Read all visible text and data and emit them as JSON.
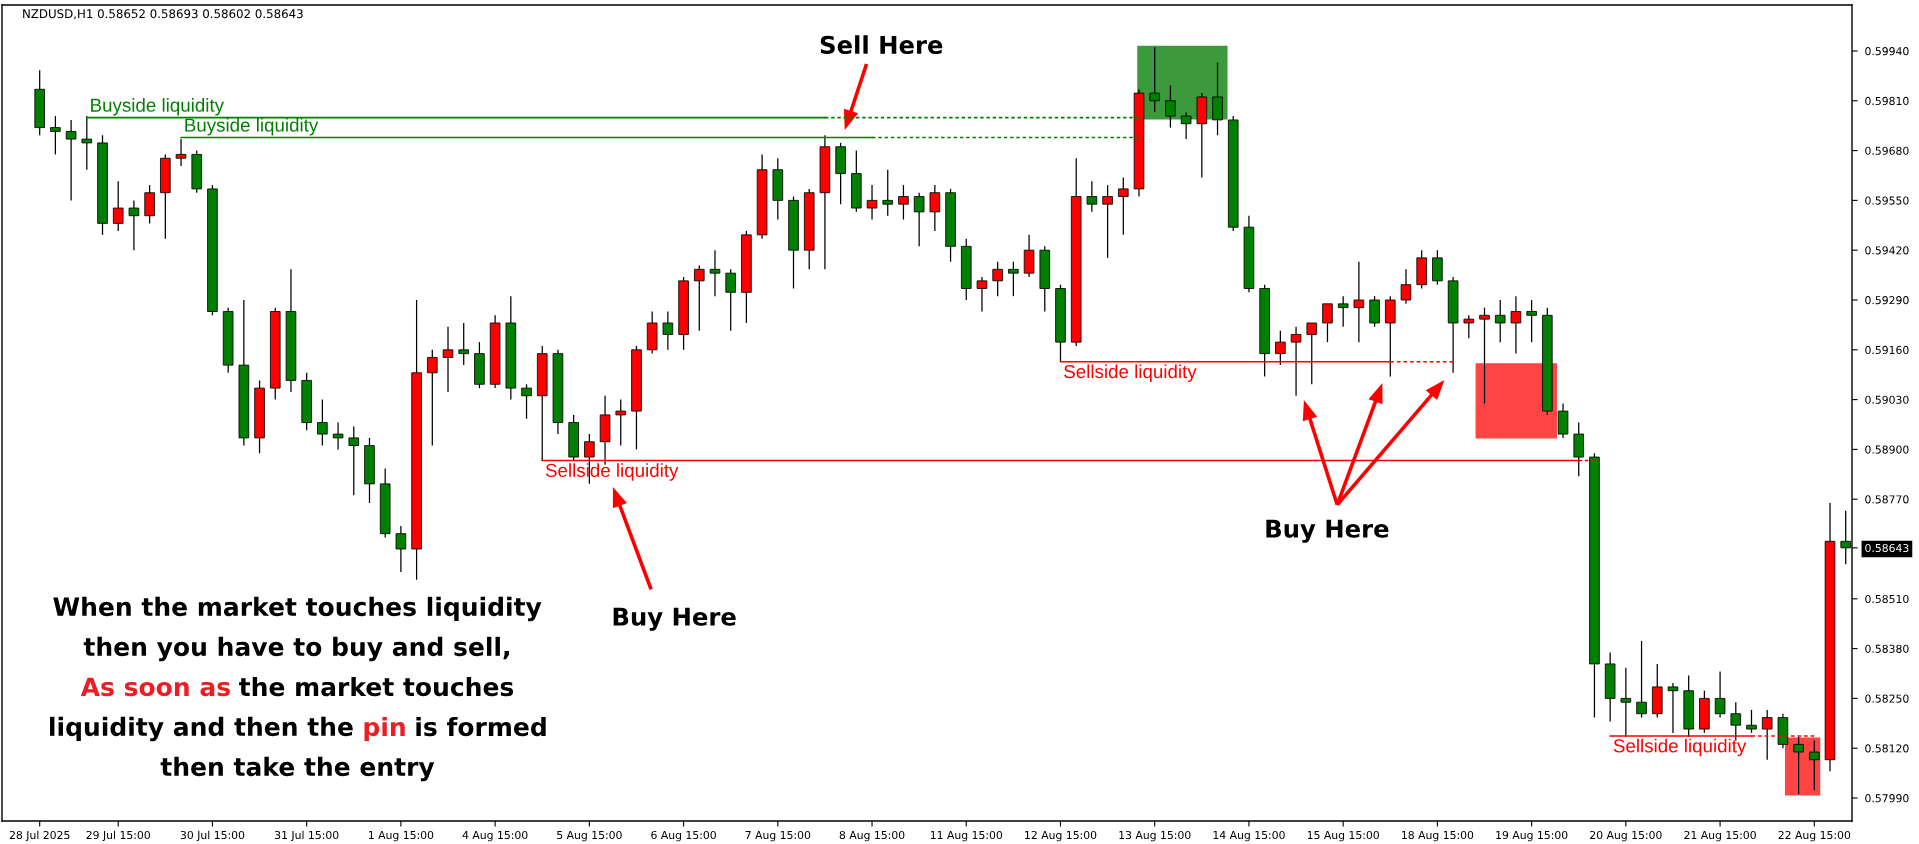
{
  "chart_data": {
    "type": "candlestick",
    "title": "NZDUSD,H1 0.58652 0.58693 0.58602 0.58643",
    "annotations": [
      "When the market touches liquidity",
      "then you have to buy and sell,",
      "As soon as",
      "the market touches",
      "liquidity and then the",
      "pin",
      "is formed",
      "then take the entry",
      "Sell Here",
      "Buy Here",
      "Buy Here"
    ],
    "categories": [
      "28 Jul 2025",
      null,
      null,
      null,
      null,
      "29 Jul 15:00",
      null,
      null,
      null,
      null,
      null,
      "30 Jul 15:00",
      null,
      null,
      null,
      null,
      null,
      "31 Jul 15:00",
      null,
      null,
      null,
      null,
      null,
      "1 Aug 15:00",
      null,
      null,
      null,
      null,
      null,
      "4 Aug 15:00",
      null,
      null,
      null,
      null,
      null,
      "5 Aug 15:00",
      null,
      null,
      null,
      null,
      null,
      "6 Aug 15:00",
      null,
      null,
      null,
      null,
      null,
      "7 Aug 15:00",
      null,
      null,
      null,
      null,
      null,
      "8 Aug 15:00",
      null,
      null,
      null,
      null,
      null,
      "11 Aug 15:00",
      null,
      null,
      null,
      null,
      null,
      "12 Aug 15:00",
      null,
      null,
      null,
      null,
      null,
      "13 Aug 15:00",
      null,
      null,
      null,
      null,
      null,
      "14 Aug 15:00",
      null,
      null,
      null,
      null,
      null,
      "15 Aug 15:00",
      null,
      null,
      null,
      null,
      null,
      "18 Aug 15:00",
      null,
      null,
      null,
      null,
      null,
      "19 Aug 15:00",
      null,
      null,
      null,
      null,
      null,
      "20 Aug 15:00",
      null,
      null,
      null,
      null,
      null,
      "21 Aug 15:00",
      null,
      null,
      null,
      null,
      null,
      "22 Aug 15:00",
      null,
      null
    ],
    "ohlc": [
      [
        0.5984,
        0.5989,
        0.5972,
        0.5974
      ],
      [
        0.5974,
        0.5977,
        0.5967,
        0.5973
      ],
      [
        0.5973,
        0.5976,
        0.5955,
        0.5971
      ],
      [
        0.5971,
        0.5977,
        0.5963,
        0.597
      ],
      [
        0.597,
        0.5972,
        0.5946,
        0.5949
      ],
      [
        0.5949,
        0.596,
        0.5947,
        0.5953
      ],
      [
        0.5953,
        0.5955,
        0.5942,
        0.5951
      ],
      [
        0.5951,
        0.5959,
        0.5949,
        0.5957
      ],
      [
        0.5957,
        0.5967,
        0.5945,
        0.5966
      ],
      [
        0.5966,
        0.5971,
        0.5964,
        0.5967
      ],
      [
        0.5967,
        0.5968,
        0.5957,
        0.5958
      ],
      [
        0.5958,
        0.5959,
        0.5925,
        0.5926
      ],
      [
        0.5926,
        0.5927,
        0.591,
        0.5912
      ],
      [
        0.5912,
        0.5929,
        0.5891,
        0.5893
      ],
      [
        0.5893,
        0.5908,
        0.5889,
        0.5906
      ],
      [
        0.5906,
        0.5927,
        0.5903,
        0.5926
      ],
      [
        0.5926,
        0.5937,
        0.5905,
        0.5908
      ],
      [
        0.5908,
        0.591,
        0.5895,
        0.5897
      ],
      [
        0.5897,
        0.5903,
        0.5891,
        0.5894
      ],
      [
        0.5894,
        0.5897,
        0.589,
        0.5893
      ],
      [
        0.5893,
        0.5896,
        0.5878,
        0.5891
      ],
      [
        0.5891,
        0.5893,
        0.5876,
        0.5881
      ],
      [
        0.5881,
        0.5885,
        0.5867,
        0.5868
      ],
      [
        0.5868,
        0.587,
        0.5858,
        0.5864
      ],
      [
        0.5864,
        0.5929,
        0.5856,
        0.591
      ],
      [
        0.591,
        0.5916,
        0.5891,
        0.5914
      ],
      [
        0.5914,
        0.5922,
        0.5905,
        0.5916
      ],
      [
        0.5916,
        0.5923,
        0.5912,
        0.5915
      ],
      [
        0.5915,
        0.5918,
        0.5906,
        0.5907
      ],
      [
        0.5907,
        0.5925,
        0.5906,
        0.5923
      ],
      [
        0.5923,
        0.593,
        0.5903,
        0.5906
      ],
      [
        0.5906,
        0.5907,
        0.5898,
        0.5904
      ],
      [
        0.5904,
        0.5917,
        0.5887,
        0.5915
      ],
      [
        0.5915,
        0.5916,
        0.5894,
        0.5897
      ],
      [
        0.5897,
        0.5899,
        0.5887,
        0.5888
      ],
      [
        0.5888,
        0.5894,
        0.5881,
        0.5892
      ],
      [
        0.5892,
        0.5904,
        0.5886,
        0.5899
      ],
      [
        0.5899,
        0.5903,
        0.5891,
        0.59
      ],
      [
        0.59,
        0.5917,
        0.589,
        0.5916
      ],
      [
        0.5916,
        0.5926,
        0.5915,
        0.5923
      ],
      [
        0.5923,
        0.5926,
        0.5916,
        0.592
      ],
      [
        0.592,
        0.5935,
        0.5916,
        0.5934
      ],
      [
        0.5934,
        0.5938,
        0.5921,
        0.5937
      ],
      [
        0.5937,
        0.5942,
        0.593,
        0.5936
      ],
      [
        0.5936,
        0.5937,
        0.5921,
        0.5931
      ],
      [
        0.5931,
        0.5947,
        0.5923,
        0.5946
      ],
      [
        0.5946,
        0.5967,
        0.5945,
        0.5963
      ],
      [
        0.5963,
        0.5966,
        0.595,
        0.5955
      ],
      [
        0.5955,
        0.5956,
        0.5932,
        0.5942
      ],
      [
        0.5942,
        0.5958,
        0.5937,
        0.5957
      ],
      [
        0.5957,
        0.5972,
        0.5937,
        0.5969
      ],
      [
        0.5969,
        0.597,
        0.5954,
        0.5962
      ],
      [
        0.5962,
        0.5968,
        0.5952,
        0.5953
      ],
      [
        0.5953,
        0.5959,
        0.595,
        0.5955
      ],
      [
        0.5955,
        0.5963,
        0.5951,
        0.5954
      ],
      [
        0.5954,
        0.5959,
        0.595,
        0.5956
      ],
      [
        0.5956,
        0.5957,
        0.5943,
        0.5952
      ],
      [
        0.5952,
        0.5959,
        0.5947,
        0.5957
      ],
      [
        0.5957,
        0.5958,
        0.5939,
        0.5943
      ],
      [
        0.5943,
        0.5945,
        0.5929,
        0.5932
      ],
      [
        0.5932,
        0.5935,
        0.5926,
        0.5934
      ],
      [
        0.5934,
        0.5939,
        0.593,
        0.5937
      ],
      [
        0.5937,
        0.5939,
        0.593,
        0.5936
      ],
      [
        0.5936,
        0.5946,
        0.5935,
        0.5942
      ],
      [
        0.5942,
        0.5943,
        0.5926,
        0.5932
      ],
      [
        0.5932,
        0.5933,
        0.5913,
        0.5918
      ],
      [
        0.5918,
        0.5966,
        0.5917,
        0.5956
      ],
      [
        0.5956,
        0.596,
        0.5952,
        0.5954
      ],
      [
        0.5954,
        0.5959,
        0.594,
        0.5956
      ],
      [
        0.5956,
        0.5961,
        0.5946,
        0.5958
      ],
      [
        0.5958,
        0.5984,
        0.5956,
        0.5983
      ],
      [
        0.5983,
        0.5995,
        0.5978,
        0.5981
      ],
      [
        0.5981,
        0.5985,
        0.5974,
        0.5977
      ],
      [
        0.5977,
        0.5978,
        0.5971,
        0.5975
      ],
      [
        0.5975,
        0.5983,
        0.5961,
        0.5982
      ],
      [
        0.5982,
        0.5991,
        0.5972,
        0.5976
      ],
      [
        0.5976,
        0.5977,
        0.5947,
        0.5948
      ],
      [
        0.5948,
        0.5951,
        0.5931,
        0.5932
      ],
      [
        0.5932,
        0.5933,
        0.5909,
        0.5915
      ],
      [
        0.5915,
        0.5921,
        0.5912,
        0.5918
      ],
      [
        0.5918,
        0.5922,
        0.5904,
        0.592
      ],
      [
        0.592,
        0.5923,
        0.5907,
        0.5923
      ],
      [
        0.5923,
        0.5928,
        0.5918,
        0.5928
      ],
      [
        0.5928,
        0.593,
        0.5922,
        0.5927
      ],
      [
        0.5927,
        0.5939,
        0.5918,
        0.5929
      ],
      [
        0.5929,
        0.593,
        0.5922,
        0.5923
      ],
      [
        0.5923,
        0.593,
        0.5909,
        0.5929
      ],
      [
        0.5929,
        0.5937,
        0.5928,
        0.5933
      ],
      [
        0.5933,
        0.5942,
        0.5932,
        0.594
      ],
      [
        0.594,
        0.5942,
        0.5933,
        0.5934
      ],
      [
        0.5934,
        0.5935,
        0.591,
        0.5923
      ],
      [
        0.5923,
        0.5925,
        0.5919,
        0.5924
      ],
      [
        0.5924,
        0.5927,
        0.5902,
        0.5925
      ],
      [
        0.5925,
        0.5929,
        0.5918,
        0.5923
      ],
      [
        0.5923,
        0.593,
        0.5915,
        0.5926
      ],
      [
        0.5926,
        0.5929,
        0.5918,
        0.5925
      ],
      [
        0.5925,
        0.5927,
        0.5899,
        0.59
      ],
      [
        0.59,
        0.5902,
        0.5893,
        0.5894
      ],
      [
        0.5894,
        0.5897,
        0.5883,
        0.5888
      ],
      [
        0.5888,
        0.5889,
        0.582,
        0.5834
      ],
      [
        0.5834,
        0.5837,
        0.5819,
        0.5825
      ],
      [
        0.5825,
        0.5833,
        0.5815,
        0.5824
      ],
      [
        0.5824,
        0.584,
        0.582,
        0.5821
      ],
      [
        0.5821,
        0.5834,
        0.582,
        0.5828
      ],
      [
        0.5828,
        0.5829,
        0.5816,
        0.5827
      ],
      [
        0.5827,
        0.5831,
        0.5815,
        0.5817
      ],
      [
        0.5817,
        0.5827,
        0.5816,
        0.5825
      ],
      [
        0.5825,
        0.5832,
        0.582,
        0.5821
      ],
      [
        0.5821,
        0.5824,
        0.5814,
        0.5818
      ],
      [
        0.5818,
        0.5822,
        0.5816,
        0.5817
      ],
      [
        0.5817,
        0.5822,
        0.5809,
        0.582
      ],
      [
        0.582,
        0.5821,
        0.5812,
        0.5813
      ],
      [
        0.5813,
        0.5815,
        0.58,
        0.5811
      ],
      [
        0.5811,
        0.5814,
        0.5801,
        0.5809
      ],
      [
        0.5809,
        0.5876,
        0.5806,
        0.5866
      ],
      [
        0.5866,
        0.5874,
        0.586,
        0.58643
      ]
    ],
    "colors": [
      "#008000",
      "#008000",
      "#008000",
      "#008000",
      "#008000",
      "#ff0000",
      "#008000",
      "#ff0000",
      "#ff0000",
      "#ff0000",
      "#008000",
      "#008000",
      "#008000",
      "#008000",
      "#ff0000",
      "#ff0000",
      "#008000",
      "#008000",
      "#008000",
      "#008000",
      "#008000",
      "#008000",
      "#008000",
      "#008000",
      "#ff0000",
      "#ff0000",
      "#ff0000",
      "#008000",
      "#008000",
      "#ff0000",
      "#008000",
      "#008000",
      "#ff0000",
      "#008000",
      "#008000",
      "#ff0000",
      "#ff0000",
      "#ff0000",
      "#ff0000",
      "#ff0000",
      "#008000",
      "#ff0000",
      "#ff0000",
      "#008000",
      "#008000",
      "#ff0000",
      "#ff0000",
      "#008000",
      "#008000",
      "#ff0000",
      "#ff0000",
      "#008000",
      "#008000",
      "#ff0000",
      "#008000",
      "#ff0000",
      "#008000",
      "#ff0000",
      "#008000",
      "#008000",
      "#ff0000",
      "#ff0000",
      "#008000",
      "#ff0000",
      "#008000",
      "#008000",
      "#ff0000",
      "#008000",
      "#ff0000",
      "#ff0000",
      "#ff0000",
      "#008000",
      "#008000",
      "#008000",
      "#ff0000",
      "#008000",
      "#008000",
      "#008000",
      "#008000",
      "#ff0000",
      "#ff0000",
      "#ff0000",
      "#ff0000",
      "#008000",
      "#ff0000",
      "#008000",
      "#ff0000",
      "#ff0000",
      "#ff0000",
      "#008000",
      "#008000",
      "#ff0000",
      "#ff0000",
      "#008000",
      "#ff0000",
      "#008000",
      "#008000",
      "#008000",
      "#008000",
      "#008000",
      "#008000",
      "#008000",
      "#008000",
      "#ff0000",
      "#008000",
      "#008000",
      "#ff0000",
      "#008000",
      "#008000",
      "#008000",
      "#ff0000",
      "#008000",
      "#008000",
      "#008000",
      "#ff0000",
      "#008000"
    ],
    "series": [
      {
        "type": "line",
        "name": "Buyside liquidity",
        "color": "#008000",
        "line_style": "solid",
        "values": [
          null,
          null,
          null,
          0.59766,
          0.59766,
          0.59766,
          0.59766,
          0.59766,
          0.59766,
          0.59766,
          0.59766,
          0.59766,
          0.59766,
          0.59766,
          0.59766,
          0.59766,
          0.59766,
          0.59766,
          0.59766,
          0.59766,
          0.59766,
          0.59766,
          0.59766,
          0.59766,
          0.59766,
          0.59766,
          0.59766,
          0.59766,
          0.59766,
          0.59766,
          0.59766,
          0.59766,
          0.59766,
          0.59766,
          0.59766,
          0.59766,
          0.59766,
          0.59766,
          0.59766,
          0.59766,
          0.59766,
          0.59766,
          0.59766,
          0.59766,
          0.59766,
          0.59766,
          0.59766,
          0.59766,
          0.59766,
          0.59766,
          0.59766,
          null,
          null,
          null,
          null,
          null,
          null,
          null,
          null,
          null,
          null,
          null,
          null,
          null,
          null,
          null,
          null,
          null,
          null,
          null,
          null,
          null,
          null,
          null,
          null,
          null,
          null,
          null,
          null,
          null,
          null,
          null,
          null,
          null,
          null,
          null,
          null,
          null,
          null,
          null,
          null,
          null,
          null,
          null,
          null,
          null,
          null,
          null,
          null,
          null,
          null,
          null,
          null,
          null,
          null,
          null,
          null,
          null,
          null,
          null,
          null,
          null,
          null,
          null,
          null,
          null
        ]
      },
      {
        "type": "line",
        "color": "#008000",
        "line_style": "dotted",
        "values": [
          null,
          null,
          null,
          null,
          null,
          null,
          null,
          null,
          null,
          null,
          null,
          null,
          null,
          null,
          null,
          null,
          null,
          null,
          null,
          null,
          null,
          null,
          null,
          null,
          null,
          null,
          null,
          null,
          null,
          null,
          null,
          null,
          null,
          null,
          null,
          null,
          null,
          null,
          null,
          null,
          null,
          null,
          null,
          null,
          null,
          null,
          null,
          null,
          null,
          null,
          0.59766,
          0.59766,
          0.59766,
          0.59766,
          0.59766,
          0.59766,
          0.59766,
          0.59766,
          0.59766,
          0.59766,
          0.59766,
          0.59766,
          0.59766,
          0.59766,
          0.59766,
          0.59766,
          0.59766,
          0.59766,
          0.59766,
          0.59766,
          0.59766,
          null,
          null,
          null,
          null,
          null,
          null,
          null,
          null,
          null,
          null,
          null,
          null,
          null,
          null,
          null,
          null,
          null,
          null,
          null,
          null,
          null,
          null,
          null,
          null,
          null,
          null,
          null,
          null,
          null,
          null,
          null,
          null,
          null,
          null,
          null,
          null,
          null,
          null,
          null,
          null,
          null,
          null,
          null,
          null,
          null
        ]
      },
      {
        "type": "line",
        "name": "Buyside liquidity",
        "color": "#008000",
        "line_style": "solid",
        "values": [
          null,
          null,
          null,
          null,
          null,
          null,
          null,
          null,
          null,
          0.59714,
          0.59714,
          0.59714,
          0.59714,
          0.59714,
          0.59714,
          0.59714,
          0.59714,
          0.59714,
          0.59714,
          0.59714,
          0.59714,
          0.59714,
          0.59714,
          0.59714,
          0.59714,
          0.59714,
          0.59714,
          0.59714,
          0.59714,
          0.59714,
          0.59714,
          0.59714,
          0.59714,
          0.59714,
          0.59714,
          0.59714,
          0.59714,
          0.59714,
          0.59714,
          0.59714,
          0.59714,
          0.59714,
          0.59714,
          0.59714,
          0.59714,
          0.59714,
          0.59714,
          0.59714,
          0.59714,
          0.59714,
          0.59714,
          0.59714,
          0.59714,
          0.59714,
          null,
          null,
          null,
          null,
          null,
          null,
          null,
          null,
          null,
          null,
          null,
          null,
          null,
          null,
          null,
          null,
          null,
          null,
          null,
          null,
          null,
          null,
          null,
          null,
          null,
          null,
          null,
          null,
          null,
          null,
          null,
          null,
          null,
          null,
          null,
          null,
          null,
          null,
          null,
          null,
          null,
          null,
          null,
          null,
          null,
          null,
          null,
          null,
          null,
          null,
          null,
          null,
          null,
          null,
          null,
          null,
          null,
          null,
          null,
          null,
          null,
          null
        ]
      },
      {
        "type": "line",
        "color": "#008000",
        "line_style": "dotted",
        "values": [
          null,
          null,
          null,
          null,
          null,
          null,
          null,
          null,
          null,
          null,
          null,
          null,
          null,
          null,
          null,
          null,
          null,
          null,
          null,
          null,
          null,
          null,
          null,
          null,
          null,
          null,
          null,
          null,
          null,
          null,
          null,
          null,
          null,
          null,
          null,
          null,
          null,
          null,
          null,
          null,
          null,
          null,
          null,
          null,
          null,
          null,
          null,
          null,
          null,
          null,
          null,
          null,
          null,
          0.59714,
          0.59714,
          0.59714,
          0.59714,
          0.59714,
          0.59714,
          0.59714,
          0.59714,
          0.59714,
          0.59714,
          0.59714,
          0.59714,
          0.59714,
          0.59714,
          0.59714,
          0.59714,
          0.59714,
          0.59714,
          null,
          null,
          null,
          null,
          null,
          null,
          null,
          null,
          null,
          null,
          null,
          null,
          null,
          null,
          null,
          null,
          null,
          null,
          null,
          null,
          null,
          null,
          null,
          null,
          null,
          null,
          null,
          null,
          null,
          null,
          null,
          null,
          null,
          null,
          null,
          null,
          null,
          null,
          null,
          null,
          null,
          null,
          null,
          null,
          null
        ]
      },
      {
        "type": "line",
        "name": "Sellside liquidity",
        "color": "#ff0000",
        "line_style": "solid",
        "values": [
          null,
          null,
          null,
          null,
          null,
          null,
          null,
          null,
          null,
          null,
          null,
          null,
          null,
          null,
          null,
          null,
          null,
          null,
          null,
          null,
          null,
          null,
          null,
          null,
          null,
          null,
          null,
          null,
          null,
          null,
          null,
          null,
          null,
          null,
          null,
          null,
          null,
          null,
          null,
          null,
          null,
          null,
          null,
          null,
          null,
          null,
          null,
          null,
          null,
          null,
          null,
          null,
          null,
          null,
          null,
          null,
          null,
          null,
          null,
          null,
          null,
          null,
          null,
          null,
          null,
          0.59129,
          0.59129,
          0.59129,
          0.59129,
          0.59129,
          0.59129,
          0.59129,
          0.59129,
          0.59129,
          0.59129,
          0.59129,
          0.59129,
          0.59129,
          0.59129,
          0.59129,
          0.59129,
          0.59129,
          0.59129,
          0.59129,
          0.59129,
          0.59129,
          0.59129,
          null,
          null,
          null,
          null,
          null,
          null,
          null,
          null,
          null,
          null,
          null,
          null,
          null,
          null,
          null,
          null,
          null,
          null,
          null,
          null,
          null,
          null,
          null,
          null,
          null,
          null,
          null,
          null,
          null
        ]
      },
      {
        "type": "line",
        "color": "#ff0000",
        "line_style": "dotted",
        "values": [
          null,
          null,
          null,
          null,
          null,
          null,
          null,
          null,
          null,
          null,
          null,
          null,
          null,
          null,
          null,
          null,
          null,
          null,
          null,
          null,
          null,
          null,
          null,
          null,
          null,
          null,
          null,
          null,
          null,
          null,
          null,
          null,
          null,
          null,
          null,
          null,
          null,
          null,
          null,
          null,
          null,
          null,
          null,
          null,
          null,
          null,
          null,
          null,
          null,
          null,
          null,
          null,
          null,
          null,
          null,
          null,
          null,
          null,
          null,
          null,
          null,
          null,
          null,
          null,
          null,
          null,
          null,
          null,
          null,
          null,
          null,
          null,
          null,
          null,
          null,
          null,
          null,
          null,
          null,
          null,
          null,
          null,
          null,
          null,
          null,
          null,
          0.59129,
          0.59129,
          0.59129,
          0.59129,
          0.59129,
          null,
          null,
          null,
          null,
          null,
          null,
          null,
          null,
          null,
          null,
          null,
          null,
          null,
          null,
          null,
          null,
          null,
          null,
          null,
          null,
          null,
          null,
          null,
          null,
          null
        ]
      },
      {
        "type": "line",
        "name": "Sellside liquidity",
        "color": "#ff0000",
        "line_style": "solid",
        "values": [
          null,
          null,
          null,
          null,
          null,
          null,
          null,
          null,
          null,
          null,
          null,
          null,
          null,
          null,
          null,
          null,
          null,
          null,
          null,
          null,
          null,
          null,
          null,
          null,
          null,
          null,
          null,
          null,
          null,
          null,
          null,
          null,
          0.58871,
          0.58871,
          0.58871,
          0.58871,
          0.58871,
          0.58871,
          0.58871,
          0.58871,
          0.58871,
          0.58871,
          0.58871,
          0.58871,
          0.58871,
          0.58871,
          0.58871,
          0.58871,
          0.58871,
          0.58871,
          0.58871,
          0.58871,
          0.58871,
          0.58871,
          0.58871,
          0.58871,
          0.58871,
          0.58871,
          0.58871,
          0.58871,
          0.58871,
          0.58871,
          0.58871,
          0.58871,
          0.58871,
          0.58871,
          0.58871,
          0.58871,
          0.58871,
          0.58871,
          0.58871,
          0.58871,
          0.58871,
          0.58871,
          0.58871,
          0.58871,
          0.58871,
          0.58871,
          0.58871,
          0.58871,
          0.58871,
          0.58871,
          0.58871,
          0.58871,
          0.58871,
          0.58871,
          0.58871,
          0.58871,
          0.58871,
          0.58871,
          0.58871,
          0.58871,
          0.58871,
          0.58871,
          0.58871,
          0.58871,
          0.58871,
          0.58871,
          0.58871,
          null,
          null,
          null,
          null,
          null,
          null,
          null,
          null,
          null,
          null,
          null,
          null,
          null,
          null,
          null,
          null,
          null
        ]
      },
      {
        "type": "line",
        "color": "#ff0000",
        "line_style": "dotted",
        "values": [
          null,
          null,
          null,
          null,
          null,
          null,
          null,
          null,
          null,
          null,
          null,
          null,
          null,
          null,
          null,
          null,
          null,
          null,
          null,
          null,
          null,
          null,
          null,
          null,
          null,
          null,
          null,
          null,
          null,
          null,
          null,
          null,
          null,
          null,
          null,
          null,
          null,
          null,
          null,
          null,
          null,
          null,
          null,
          null,
          null,
          null,
          null,
          null,
          null,
          null,
          null,
          null,
          null,
          null,
          null,
          null,
          null,
          null,
          null,
          null,
          null,
          null,
          null,
          null,
          null,
          null,
          null,
          null,
          null,
          null,
          null,
          null,
          null,
          null,
          null,
          null,
          null,
          null,
          null,
          null,
          null,
          null,
          null,
          null,
          null,
          null,
          null,
          null,
          null,
          null,
          null,
          null,
          null,
          null,
          null,
          null,
          null,
          null,
          0.58871,
          0.58871,
          null,
          null,
          null,
          null,
          null,
          null,
          null,
          null,
          null,
          null,
          null,
          null,
          null,
          null,
          null,
          null
        ]
      },
      {
        "type": "line",
        "name": "Sellside liquidity",
        "color": "#ff0000",
        "line_style": "solid",
        "values": [
          null,
          null,
          null,
          null,
          null,
          null,
          null,
          null,
          null,
          null,
          null,
          null,
          null,
          null,
          null,
          null,
          null,
          null,
          null,
          null,
          null,
          null,
          null,
          null,
          null,
          null,
          null,
          null,
          null,
          null,
          null,
          null,
          null,
          null,
          null,
          null,
          null,
          null,
          null,
          null,
          null,
          null,
          null,
          null,
          null,
          null,
          null,
          null,
          null,
          null,
          null,
          null,
          null,
          null,
          null,
          null,
          null,
          null,
          null,
          null,
          null,
          null,
          null,
          null,
          null,
          null,
          null,
          null,
          null,
          null,
          null,
          null,
          null,
          null,
          null,
          null,
          null,
          null,
          null,
          null,
          null,
          null,
          null,
          null,
          null,
          null,
          null,
          null,
          null,
          null,
          null,
          null,
          null,
          null,
          null,
          null,
          null,
          null,
          null,
          null,
          0.58152,
          0.58152,
          0.58152,
          0.58152,
          0.58152,
          0.58152,
          0.58152,
          0.58152,
          0.58152,
          0.58152,
          null,
          null,
          null,
          null,
          null,
          null
        ]
      },
      {
        "type": "line",
        "color": "#ff0000",
        "line_style": "dotted",
        "values": [
          null,
          null,
          null,
          null,
          null,
          null,
          null,
          null,
          null,
          null,
          null,
          null,
          null,
          null,
          null,
          null,
          null,
          null,
          null,
          null,
          null,
          null,
          null,
          null,
          null,
          null,
          null,
          null,
          null,
          null,
          null,
          null,
          null,
          null,
          null,
          null,
          null,
          null,
          null,
          null,
          null,
          null,
          null,
          null,
          null,
          null,
          null,
          null,
          null,
          null,
          null,
          null,
          null,
          null,
          null,
          null,
          null,
          null,
          null,
          null,
          null,
          null,
          null,
          null,
          null,
          null,
          null,
          null,
          null,
          null,
          null,
          null,
          null,
          null,
          null,
          null,
          null,
          null,
          null,
          null,
          null,
          null,
          null,
          null,
          null,
          null,
          null,
          null,
          null,
          null,
          null,
          null,
          null,
          null,
          null,
          null,
          null,
          null,
          null,
          null,
          null,
          null,
          null,
          null,
          null,
          null,
          null,
          null,
          null,
          0.58152,
          0.58152,
          0.58152,
          0.58152,
          0.58152,
          null,
          null
        ]
      }
    ],
    "ylim": [
      0.5793,
      0.6006
    ],
    "yticks": [
      {
        "value": 0.5799,
        "label": "0.57990"
      },
      {
        "value": 0.5812,
        "label": "0.58120"
      },
      {
        "value": 0.5825,
        "label": "0.58250"
      },
      {
        "value": 0.5838,
        "label": "0.58380"
      },
      {
        "value": 0.5851,
        "label": "0.58510"
      },
      {
        "value": 0.58643,
        "label": "0.58643"
      },
      {
        "value": 0.5877,
        "label": "0.58770"
      },
      {
        "value": 0.589,
        "label": "0.58900"
      },
      {
        "value": 0.5903,
        "label": "0.59030"
      },
      {
        "value": 0.5916,
        "label": "0.59160"
      },
      {
        "value": 0.5929,
        "label": "0.59290"
      },
      {
        "value": 0.5942,
        "label": "0.59420"
      },
      {
        "value": 0.5955,
        "label": "0.59550"
      },
      {
        "value": 0.5968,
        "label": "0.59680"
      },
      {
        "value": 0.5981,
        "label": "0.59810"
      },
      {
        "value": 0.5994,
        "label": "0.59940"
      }
    ]
  }
}
